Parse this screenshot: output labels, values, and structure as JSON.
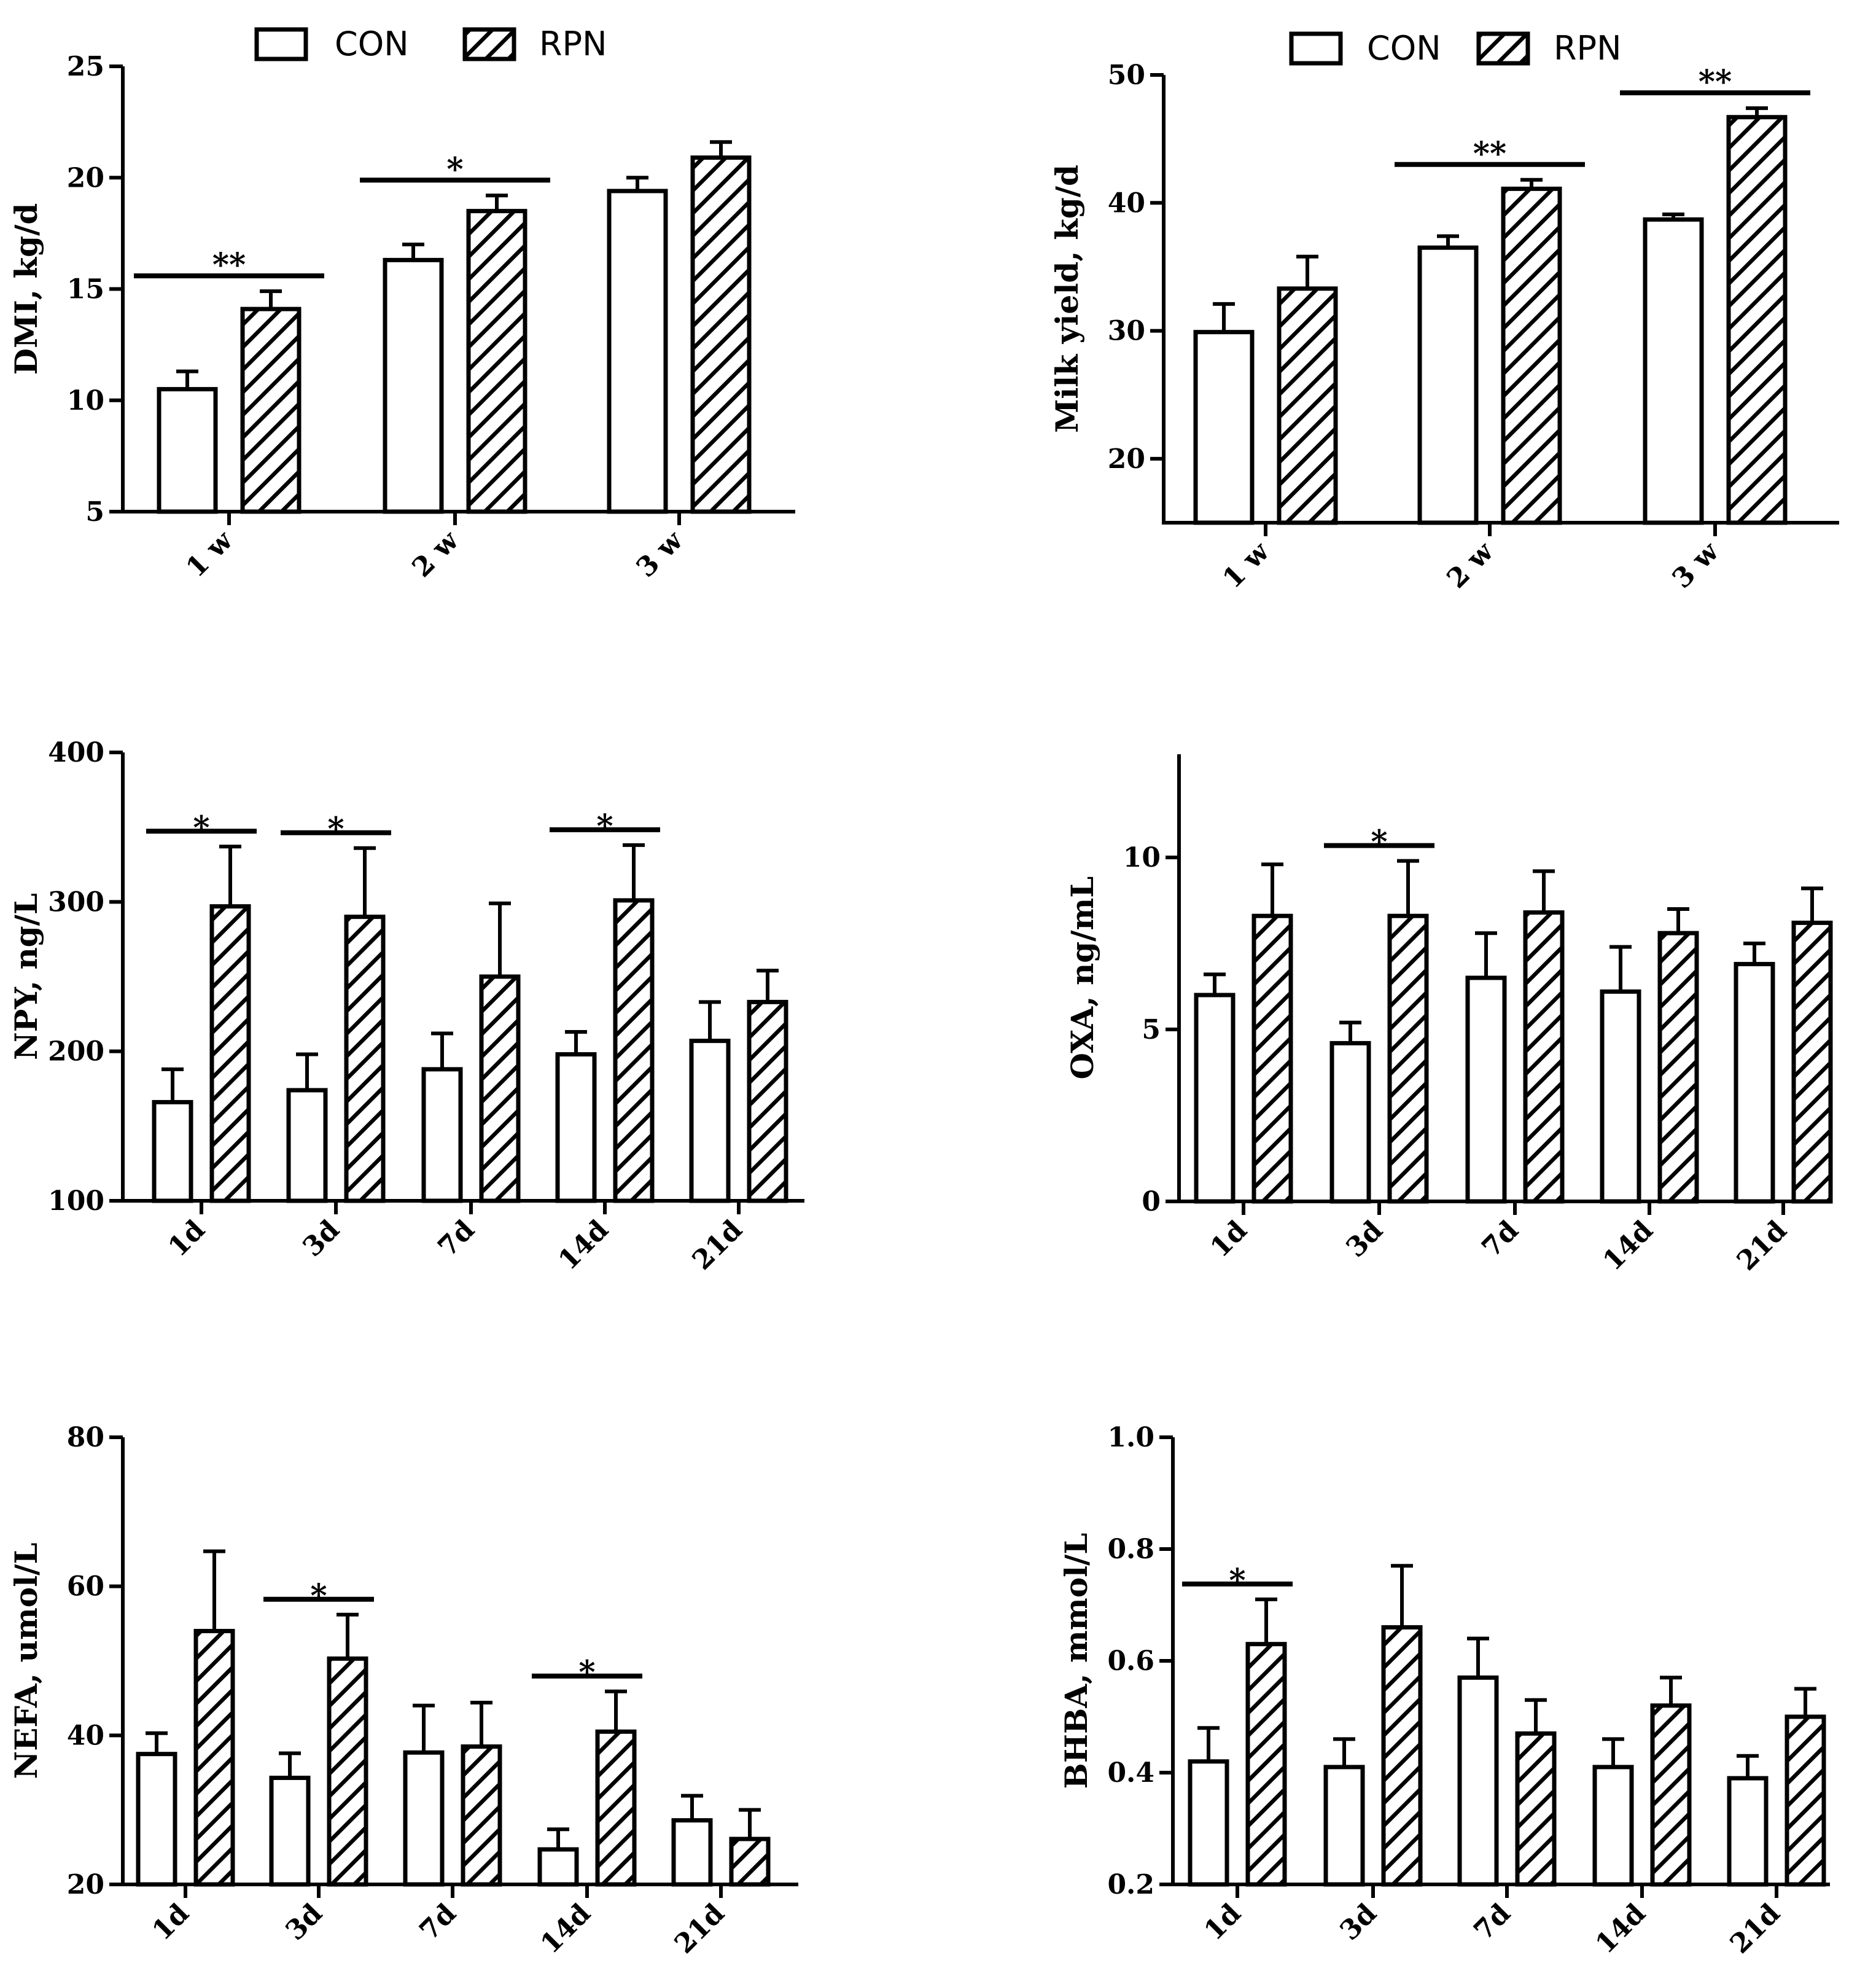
{
  "legend": {
    "entries": [
      {
        "name": "CON",
        "pattern": "open"
      },
      {
        "name": "RPN",
        "pattern": "hatched"
      }
    ]
  },
  "chart_data": [
    {
      "type": "bar",
      "panel": "dmi",
      "ylabel": "DMI, kg/d",
      "ylim": [
        5,
        25
      ],
      "yticks": [
        5,
        10,
        15,
        20,
        25
      ],
      "categories": [
        "1 w",
        "2 w",
        "3 w"
      ],
      "legend": "top",
      "series": [
        {
          "name": "CON",
          "values": [
            10.5,
            16.3,
            19.4
          ],
          "errors": [
            0.8,
            0.7,
            0.6
          ]
        },
        {
          "name": "RPN",
          "values": [
            14.1,
            18.5,
            20.9
          ],
          "errors": [
            0.8,
            0.7,
            0.7
          ]
        }
      ],
      "significance": [
        {
          "category": 0,
          "label": "**"
        },
        {
          "category": 1,
          "label": "*"
        }
      ]
    },
    {
      "type": "bar",
      "panel": "milk",
      "ylabel": "Milk yield, kg/d",
      "ylim": [
        15,
        50
      ],
      "yticks": [
        20,
        30,
        40,
        50
      ],
      "categories": [
        "1 w",
        "2 w",
        "3 w"
      ],
      "legend": "top",
      "series": [
        {
          "name": "CON",
          "values": [
            29.9,
            36.5,
            38.7
          ],
          "errors": [
            2.2,
            0.9,
            0.4
          ]
        },
        {
          "name": "RPN",
          "values": [
            33.3,
            41.1,
            46.7
          ],
          "errors": [
            2.5,
            0.7,
            0.7
          ]
        }
      ],
      "significance": [
        {
          "category": 1,
          "label": "**"
        },
        {
          "category": 2,
          "label": "**"
        }
      ]
    },
    {
      "type": "bar",
      "panel": "npy",
      "ylabel": "NPY, ng/L",
      "ylim": [
        100,
        400
      ],
      "yticks": [
        100,
        200,
        300,
        400
      ],
      "categories": [
        "1d",
        "3d",
        "7d",
        "14d",
        "21d"
      ],
      "series": [
        {
          "name": "CON",
          "values": [
            166,
            174,
            188,
            198,
            207
          ],
          "errors": [
            22,
            24,
            24,
            15,
            26
          ]
        },
        {
          "name": "RPN",
          "values": [
            297,
            290,
            250,
            301,
            233
          ],
          "errors": [
            40,
            46,
            49,
            37,
            21
          ]
        }
      ],
      "significance": [
        {
          "category": 0,
          "label": "*"
        },
        {
          "category": 1,
          "label": "*"
        },
        {
          "category": 3,
          "label": "*"
        }
      ]
    },
    {
      "type": "bar",
      "panel": "oxa",
      "ylabel": "OXA, ng/mL",
      "ylim": [
        0,
        13
      ],
      "yticks": [
        0,
        5,
        10
      ],
      "categories": [
        "1d",
        "3d",
        "7d",
        "14d",
        "21d"
      ],
      "series": [
        {
          "name": "CON",
          "values": [
            6.0,
            4.6,
            6.5,
            6.1,
            6.9
          ],
          "errors": [
            0.6,
            0.6,
            1.3,
            1.3,
            0.6
          ]
        },
        {
          "name": "RPN",
          "values": [
            8.3,
            8.3,
            8.4,
            7.8,
            8.1
          ],
          "errors": [
            1.5,
            1.6,
            1.2,
            0.7,
            1.0
          ]
        }
      ],
      "significance": [
        {
          "category": 1,
          "label": "*"
        }
      ]
    },
    {
      "type": "bar",
      "panel": "nefa",
      "ylabel": "NEFA, umol/L",
      "ylim": [
        20,
        80
      ],
      "yticks": [
        20,
        40,
        60,
        80
      ],
      "categories": [
        "1d",
        "3d",
        "7d",
        "14d",
        "21d"
      ],
      "series": [
        {
          "name": "CON",
          "values": [
            37.5,
            34.3,
            37.7,
            24.7,
            28.6
          ],
          "errors": [
            2.8,
            3.3,
            6.3,
            2.7,
            3.3
          ]
        },
        {
          "name": "RPN",
          "values": [
            54.0,
            50.3,
            38.5,
            40.5,
            26.1
          ],
          "errors": [
            10.7,
            5.9,
            5.9,
            5.4,
            3.9
          ]
        }
      ],
      "significance": [
        {
          "category": 1,
          "label": "*"
        },
        {
          "category": 3,
          "label": "*"
        }
      ]
    },
    {
      "type": "bar",
      "panel": "bhba",
      "ylabel": "BHBA, mmol/L",
      "ylim": [
        0.2,
        1.0
      ],
      "yticks": [
        "0.2",
        "0.4",
        "0.6",
        "0.8",
        "1.0"
      ],
      "categories": [
        "1d",
        "3d",
        "7d",
        "14d",
        "21d"
      ],
      "series": [
        {
          "name": "CON",
          "values": [
            0.42,
            0.41,
            0.57,
            0.41,
            0.39
          ],
          "errors": [
            0.06,
            0.05,
            0.07,
            0.05,
            0.04
          ]
        },
        {
          "name": "RPN",
          "values": [
            0.63,
            0.66,
            0.47,
            0.52,
            0.5
          ],
          "errors": [
            0.08,
            0.11,
            0.06,
            0.05,
            0.05
          ]
        }
      ],
      "significance": [
        {
          "category": 0,
          "label": "*"
        }
      ]
    }
  ]
}
